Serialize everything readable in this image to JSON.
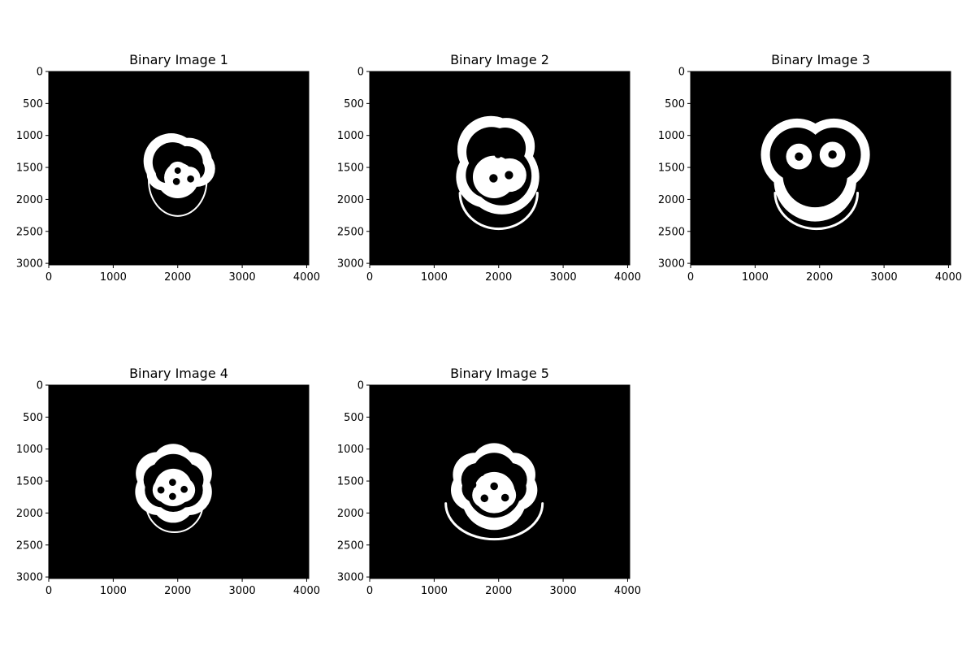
{
  "figure": {
    "panels": [
      {
        "title": "Binary Image 1",
        "variant": "small-irregular"
      },
      {
        "title": "Binary Image 2",
        "variant": "large-with-arc"
      },
      {
        "title": "Binary Image 3",
        "variant": "face-like"
      },
      {
        "title": "Binary Image 4",
        "variant": "flower"
      },
      {
        "title": "Binary Image 5",
        "variant": "flower-with-arc"
      }
    ],
    "x_ticks": [
      "0",
      "1000",
      "2000",
      "3000",
      "4000"
    ],
    "y_ticks": [
      "0",
      "500",
      "1000",
      "1500",
      "2000",
      "2500",
      "3000"
    ],
    "x_range": [
      0,
      4032
    ],
    "y_range": [
      0,
      3024
    ],
    "colors": {
      "background": "#000000",
      "foreground": "#ffffff"
    }
  }
}
